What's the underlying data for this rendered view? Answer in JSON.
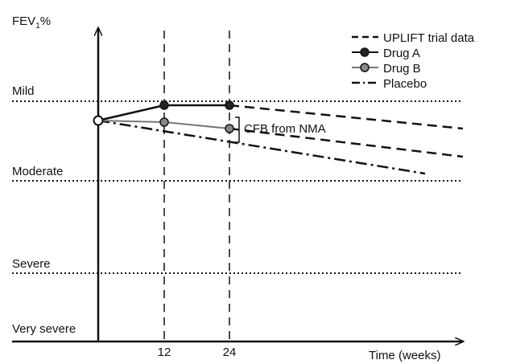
{
  "chart_data": {
    "type": "line",
    "ylabel_main": "FEV",
    "ylabel_sub": "1",
    "ylabel_suffix": "%",
    "xlabel": "Time (weeks)",
    "x_ticks": [
      "12",
      "24"
    ],
    "severity_levels": [
      "Mild",
      "Moderate",
      "Severe",
      "Very severe"
    ],
    "annotation": "CFB from NMA",
    "legend": [
      {
        "name": "UPLIFT trial data",
        "style": "dashed"
      },
      {
        "name": "Drug A",
        "style": "solid-dark-marker"
      },
      {
        "name": "Drug B",
        "style": "solid-grey-marker"
      },
      {
        "name": "Placebo",
        "style": "dash-dot"
      }
    ],
    "series": [
      {
        "name": "Drug A",
        "color": "#111111",
        "marker": "#222222",
        "x": [
          0,
          12,
          24
        ],
        "y": [
          0,
          0.55,
          0.55
        ]
      },
      {
        "name": "Drug B",
        "color": "#777777",
        "marker": "#888888",
        "x": [
          0,
          12,
          24
        ],
        "y": [
          0,
          -0.05,
          -0.25
        ]
      },
      {
        "name": "Placebo",
        "color": "#111111",
        "style": "dash-dot",
        "x": [
          0,
          60
        ],
        "y": [
          0,
          -1.55
        ]
      },
      {
        "name": "UPLIFT trial data (Drug A)",
        "color": "#111111",
        "style": "dashed",
        "x": [
          24,
          68
        ],
        "y": [
          0.55,
          -0.4
        ]
      },
      {
        "name": "UPLIFT trial data (Drug B)",
        "color": "#111111",
        "style": "dashed",
        "x": [
          24,
          68
        ],
        "y": [
          -0.25,
          -1.2
        ]
      }
    ],
    "baseline_marker": {
      "x": 0,
      "y": 0,
      "fill": "#ffffff"
    }
  }
}
